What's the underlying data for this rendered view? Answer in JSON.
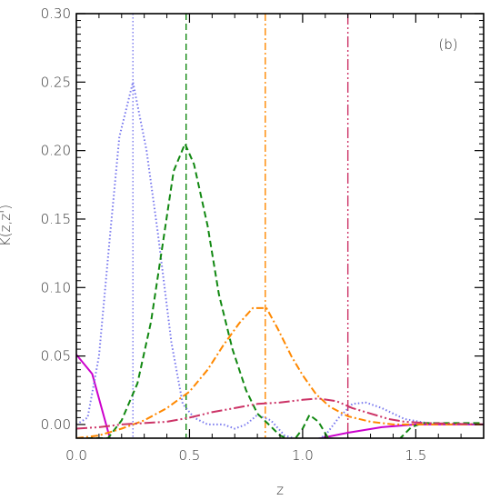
{
  "chart_data": {
    "type": "line",
    "title": "",
    "panel_label": "(b)",
    "xlabel": "z",
    "ylabel": "K(z,z')",
    "xlim": [
      0.0,
      1.8
    ],
    "ylim": [
      -0.01,
      0.3
    ],
    "x_ticks": [
      0.0,
      0.5,
      1.0,
      1.5
    ],
    "x_tick_labels": [
      "0.0",
      "0.5",
      "1.0",
      "1.5"
    ],
    "y_ticks": [
      0.0,
      0.05,
      0.1,
      0.15,
      0.2,
      0.25,
      0.3
    ],
    "y_tick_labels": [
      "0.00",
      "0.05",
      "0.10",
      "0.15",
      "0.20",
      "0.25",
      "0.30"
    ],
    "grid": false,
    "series": [
      {
        "color": "#cc00cc",
        "style": "solid",
        "x_marker": null,
        "points": [
          [
            0.0,
            0.051
          ],
          [
            0.07,
            0.037
          ],
          [
            0.15,
            -0.011
          ],
          [
            1.05,
            -0.011
          ],
          [
            1.2,
            -0.006
          ],
          [
            1.35,
            -0.002
          ],
          [
            1.5,
            0.0
          ],
          [
            1.8,
            0.0
          ]
        ]
      },
      {
        "color": "#7777ee",
        "style": "dotted",
        "x_marker": 0.25,
        "points": [
          [
            0.0,
            0.0
          ],
          [
            0.05,
            0.005
          ],
          [
            0.1,
            0.05
          ],
          [
            0.15,
            0.14
          ],
          [
            0.19,
            0.21
          ],
          [
            0.25,
            0.25
          ],
          [
            0.31,
            0.2
          ],
          [
            0.36,
            0.14
          ],
          [
            0.42,
            0.06
          ],
          [
            0.47,
            0.015
          ],
          [
            0.52,
            0.005
          ],
          [
            0.58,
            0.0
          ],
          [
            0.65,
            0.0
          ],
          [
            0.7,
            -0.003
          ],
          [
            0.75,
            0.0
          ],
          [
            0.8,
            0.007
          ],
          [
            0.86,
            0.003
          ],
          [
            0.92,
            -0.008
          ],
          [
            1.0,
            -0.012
          ],
          [
            1.05,
            -0.012
          ],
          [
            1.1,
            -0.008
          ],
          [
            1.16,
            0.005
          ],
          [
            1.22,
            0.015
          ],
          [
            1.28,
            0.016
          ],
          [
            1.35,
            0.012
          ],
          [
            1.45,
            0.004
          ],
          [
            1.55,
            0.001
          ],
          [
            1.8,
            0.0
          ]
        ]
      },
      {
        "color": "#118811",
        "style": "dashed",
        "x_marker": 0.485,
        "points": [
          [
            0.0,
            -0.01
          ],
          [
            0.14,
            -0.01
          ],
          [
            0.2,
            0.003
          ],
          [
            0.27,
            0.03
          ],
          [
            0.33,
            0.075
          ],
          [
            0.38,
            0.13
          ],
          [
            0.43,
            0.185
          ],
          [
            0.48,
            0.205
          ],
          [
            0.52,
            0.19
          ],
          [
            0.58,
            0.145
          ],
          [
            0.63,
            0.095
          ],
          [
            0.69,
            0.055
          ],
          [
            0.75,
            0.025
          ],
          [
            0.8,
            0.008
          ],
          [
            0.85,
            0.0
          ],
          [
            0.9,
            -0.008
          ],
          [
            0.96,
            -0.012
          ],
          [
            1.0,
            -0.003
          ],
          [
            1.03,
            0.007
          ],
          [
            1.07,
            0.002
          ],
          [
            1.12,
            -0.012
          ],
          [
            1.3,
            -0.012
          ],
          [
            1.42,
            -0.012
          ],
          [
            1.48,
            -0.002
          ],
          [
            1.53,
            0.001
          ],
          [
            1.6,
            0.001
          ],
          [
            1.8,
            0.001
          ]
        ]
      },
      {
        "color": "#ff8800",
        "style": "dashdot",
        "x_marker": 0.835,
        "points": [
          [
            0.0,
            -0.01
          ],
          [
            0.1,
            -0.008
          ],
          [
            0.2,
            -0.003
          ],
          [
            0.3,
            0.003
          ],
          [
            0.4,
            0.012
          ],
          [
            0.5,
            0.024
          ],
          [
            0.58,
            0.04
          ],
          [
            0.65,
            0.058
          ],
          [
            0.72,
            0.074
          ],
          [
            0.78,
            0.085
          ],
          [
            0.84,
            0.085
          ],
          [
            0.89,
            0.07
          ],
          [
            0.95,
            0.05
          ],
          [
            1.0,
            0.036
          ],
          [
            1.06,
            0.022
          ],
          [
            1.12,
            0.013
          ],
          [
            1.2,
            0.006
          ],
          [
            1.3,
            0.002
          ],
          [
            1.4,
            0.0
          ],
          [
            1.5,
            0.0
          ],
          [
            1.8,
            0.0
          ]
        ]
      },
      {
        "color": "#cc3366",
        "style": "dashdotdot",
        "x_marker": 1.2,
        "points": [
          [
            0.0,
            -0.003
          ],
          [
            0.1,
            -0.002
          ],
          [
            0.2,
            0.0
          ],
          [
            0.3,
            0.001
          ],
          [
            0.4,
            0.002
          ],
          [
            0.5,
            0.005
          ],
          [
            0.6,
            0.009
          ],
          [
            0.7,
            0.012
          ],
          [
            0.8,
            0.015
          ],
          [
            0.9,
            0.016
          ],
          [
            1.0,
            0.018
          ],
          [
            1.07,
            0.019
          ],
          [
            1.15,
            0.017
          ],
          [
            1.22,
            0.012
          ],
          [
            1.3,
            0.008
          ],
          [
            1.38,
            0.004
          ],
          [
            1.45,
            0.002
          ],
          [
            1.55,
            0.001
          ],
          [
            1.8,
            0.0
          ]
        ]
      }
    ]
  }
}
